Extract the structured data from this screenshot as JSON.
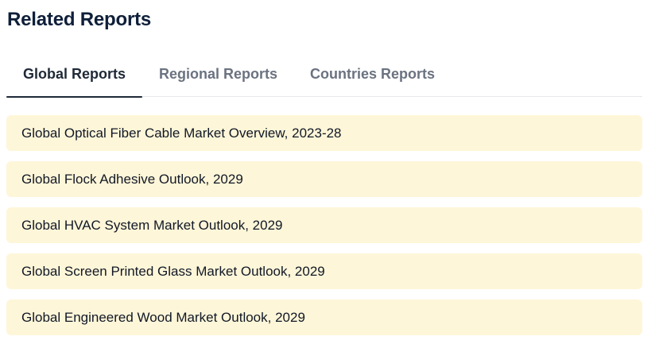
{
  "title": "Related Reports",
  "tabs": [
    {
      "label": "Global Reports",
      "active": true
    },
    {
      "label": "Regional Reports",
      "active": false
    },
    {
      "label": "Countries Reports",
      "active": false
    }
  ],
  "reports": [
    "Global Optical Fiber Cable Market Overview, 2023-28",
    "Global Flock Adhesive Outlook, 2029",
    "Global HVAC System Market Outlook, 2029",
    "Global Screen Printed Glass Market Outlook, 2029",
    "Global Engineered Wood Market Outlook, 2029"
  ],
  "colors": {
    "title": "#0f1f3a",
    "active_tab": "#1f2937",
    "inactive_tab": "#6b7280",
    "item_background": "#fef6d8"
  }
}
